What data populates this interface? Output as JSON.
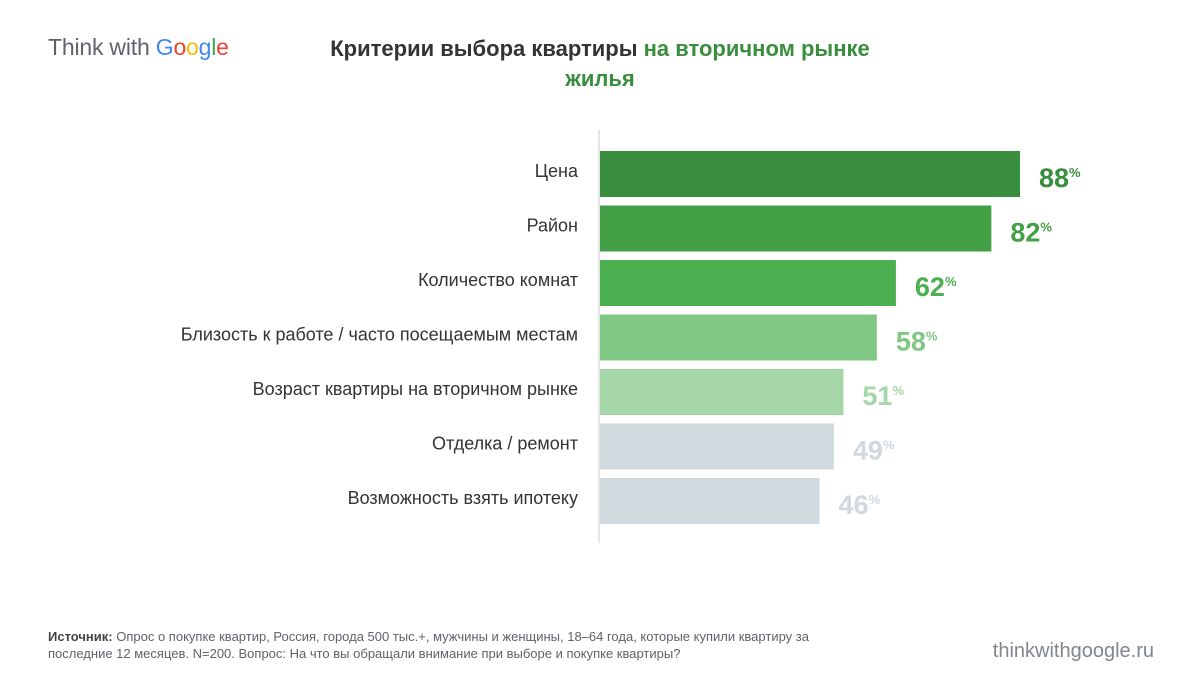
{
  "logo": {
    "think": "Think with ",
    "g1": "G",
    "o1": "o",
    "o2": "o",
    "g2": "g",
    "l": "l",
    "e": "e"
  },
  "header": {
    "title_part1": "Критерии выбора квартиры",
    "title_part2": "на вторичном рынке жилья"
  },
  "chart_data": {
    "type": "bar",
    "orientation": "horizontal",
    "categories": [
      "Цена",
      "Район",
      "Количество комнат",
      "Близость к работе / часто посещаемым местам",
      "Возраст квартиры на вторичном рынке",
      "Отделка / ремонт",
      "Возможность взять ипотеку"
    ],
    "values": [
      88,
      82,
      62,
      58,
      51,
      49,
      46
    ],
    "value_suffix": "%",
    "bar_colors": [
      "#388e3c",
      "#43a047",
      "#4caf50",
      "#81c784",
      "#a5d6a7",
      "#d0d9de",
      "#d0d9de"
    ],
    "label_colors": [
      "#388e3c",
      "#43a047",
      "#4caf50",
      "#81c784",
      "#a5d6a7",
      "#d0d9de",
      "#d0d9de"
    ],
    "xlim": [
      0,
      100
    ]
  },
  "footer": {
    "source_label": "Источник:",
    "source_text": " Опрос о покупке квартир, Россия, города 500 тыс.+, мужчины и женщины, 18–64 года, которые купили квартиру за последние 12 месяцев. N=200. Вопрос: На что вы обращали внимание при выборе и покупке квартиры?",
    "site": "thinkwithgoogle.ru"
  }
}
